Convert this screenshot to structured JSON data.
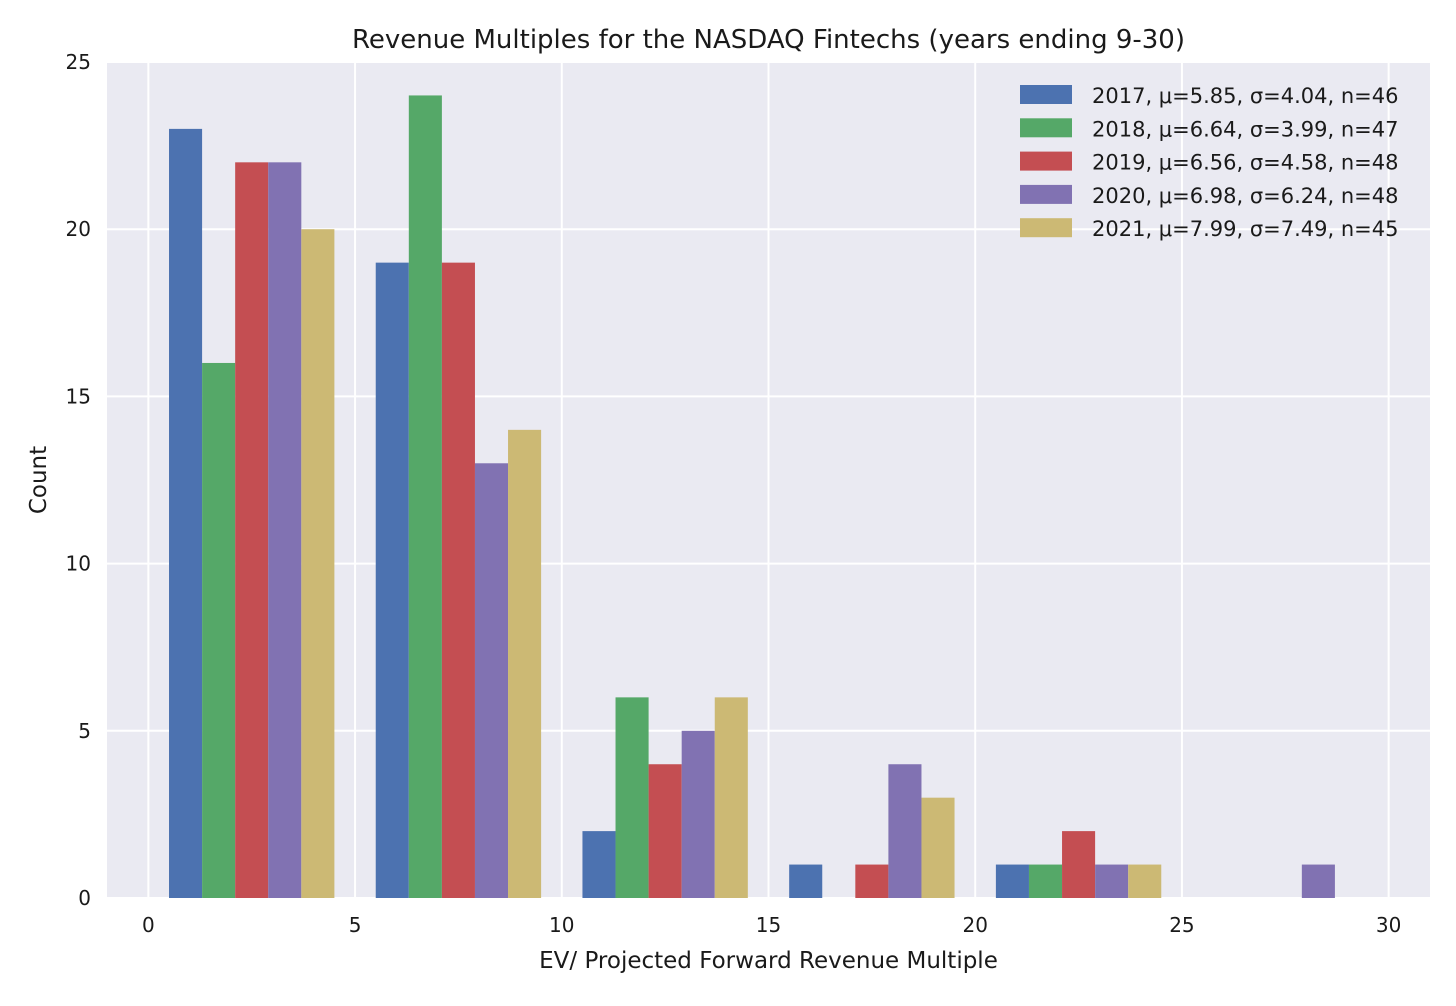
{
  "chart_data": {
    "type": "bar",
    "title": "Revenue Multiples for the NASDAQ Fintechs (years ending 9-30)",
    "xlabel": "EV/ Projected Forward Revenue Multiple",
    "ylabel": "Count",
    "xlim": [
      -1,
      31
    ],
    "ylim": [
      0,
      25
    ],
    "xticks": [
      0,
      5,
      10,
      15,
      20,
      25,
      30
    ],
    "xtick_labels": [
      "0",
      "5",
      "10",
      "15",
      "20",
      "25",
      "30"
    ],
    "yticks": [
      0,
      5,
      10,
      15,
      20,
      25
    ],
    "ytick_labels": [
      "0",
      "5",
      "10",
      "15",
      "20",
      "25"
    ],
    "grid": true,
    "legend_position": "top-right",
    "bin_edges": [
      0.5,
      5.5,
      10.5,
      15.5,
      20.5,
      25.5,
      30.5
    ],
    "series": [
      {
        "name": "2017",
        "label": "2017, μ=5.85, σ=4.04, n=46",
        "color": "#4c72b0",
        "values": [
          23,
          19,
          2,
          1,
          1,
          0
        ]
      },
      {
        "name": "2018",
        "label": "2018, μ=6.64, σ=3.99, n=47",
        "color": "#55a868",
        "values": [
          16,
          24,
          6,
          0,
          1,
          0
        ]
      },
      {
        "name": "2019",
        "label": "2019, μ=6.56, σ=4.58, n=48",
        "color": "#c44e52",
        "values": [
          22,
          19,
          4,
          1,
          2,
          0
        ]
      },
      {
        "name": "2020",
        "label": "2020, μ=6.98, σ=6.24, n=48",
        "color": "#8172b2",
        "values": [
          22,
          13,
          5,
          4,
          1,
          1
        ]
      },
      {
        "name": "2021",
        "label": "2021, μ=7.99, σ=7.49, n=45",
        "color": "#ccb974",
        "values": [
          20,
          14,
          6,
          3,
          1,
          0
        ]
      }
    ],
    "background_color": "#eaeaf2",
    "grid_color": "#ffffff"
  }
}
